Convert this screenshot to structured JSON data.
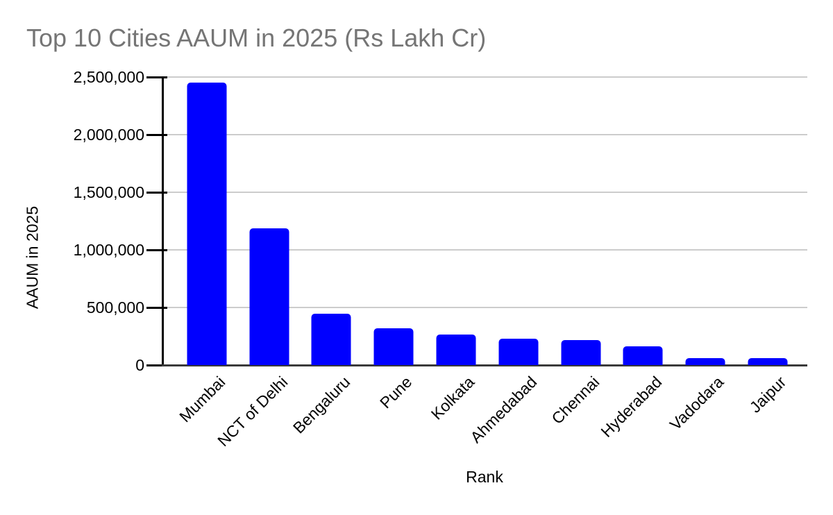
{
  "chart_data": {
    "type": "bar",
    "title": "Top 10 Cities AAUM in 2025 (Rs Lakh Cr)",
    "xlabel": "Rank",
    "ylabel": "AAUM in 2025",
    "categories": [
      "Mumbai",
      "NCT of Delhi",
      "Bengaluru",
      "Pune",
      "Kolkata",
      "Ahmedabad",
      "Chennai",
      "Hyderabad",
      "Vadodara",
      "Jaipur"
    ],
    "values": [
      2450000,
      1185000,
      448000,
      318000,
      266000,
      230000,
      218000,
      160000,
      58000,
      63000
    ],
    "ylim": [
      0,
      2500000
    ],
    "ytick_interval": 500000,
    "ytick_labels": [
      "0",
      "500,000",
      "1,000,000",
      "1,500,000",
      "2,000,000",
      "2,500,000"
    ],
    "grid": true,
    "legend_position": "none",
    "colors": {
      "bar": "#0000ff",
      "title_text": "#757575",
      "gridline": "#cccccc",
      "axis_line": "#000000",
      "baseline": "#3a3a3a",
      "label_text": "#000000",
      "background": "#ffffff"
    }
  }
}
